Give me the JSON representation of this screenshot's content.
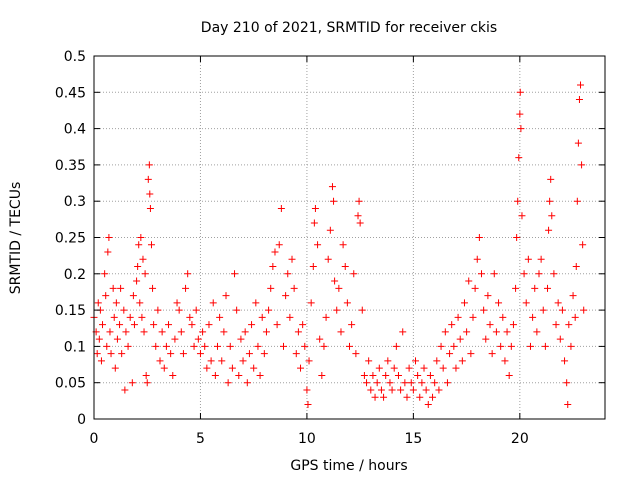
{
  "chart_data": {
    "type": "scatter",
    "title": "Day 210 of 2021, SRMTID for receiver ckis",
    "xlabel": "GPS time / hours",
    "ylabel": "SRMTID / TECUs",
    "xlim": [
      0,
      24
    ],
    "ylim": [
      0,
      0.5
    ],
    "xticks": [
      0,
      5,
      10,
      15,
      20
    ],
    "xtick_labels": [
      "0",
      "5",
      "10",
      "15",
      "20"
    ],
    "yticks": [
      0,
      0.05,
      0.1,
      0.15,
      0.2,
      0.25,
      0.3,
      0.35,
      0.4,
      0.45,
      0.5
    ],
    "ytick_labels": [
      "0",
      "0.05",
      "0.1",
      "0.15",
      "0.2",
      "0.25",
      "0.3",
      "0.35",
      "0.4",
      "0.45",
      "0.5"
    ],
    "grid": true,
    "marker": "+",
    "color": "#ff0000",
    "series": [
      {
        "name": "SRMTID",
        "points": [
          [
            0.0,
            0.14
          ],
          [
            0.1,
            0.12
          ],
          [
            0.15,
            0.09
          ],
          [
            0.2,
            0.16
          ],
          [
            0.25,
            0.11
          ],
          [
            0.3,
            0.15
          ],
          [
            0.35,
            0.08
          ],
          [
            0.4,
            0.13
          ],
          [
            0.5,
            0.2
          ],
          [
            0.55,
            0.17
          ],
          [
            0.6,
            0.1
          ],
          [
            0.65,
            0.23
          ],
          [
            0.7,
            0.25
          ],
          [
            0.75,
            0.12
          ],
          [
            0.8,
            0.09
          ],
          [
            0.9,
            0.18
          ],
          [
            0.95,
            0.14
          ],
          [
            1.0,
            0.07
          ],
          [
            1.05,
            0.16
          ],
          [
            1.1,
            0.11
          ],
          [
            1.2,
            0.13
          ],
          [
            1.25,
            0.18
          ],
          [
            1.3,
            0.09
          ],
          [
            1.4,
            0.15
          ],
          [
            1.45,
            0.04
          ],
          [
            1.5,
            0.12
          ],
          [
            1.6,
            0.1
          ],
          [
            1.7,
            0.14
          ],
          [
            1.8,
            0.05
          ],
          [
            1.85,
            0.17
          ],
          [
            1.9,
            0.13
          ],
          [
            2.0,
            0.19
          ],
          [
            2.05,
            0.21
          ],
          [
            2.1,
            0.24
          ],
          [
            2.15,
            0.16
          ],
          [
            2.2,
            0.25
          ],
          [
            2.25,
            0.14
          ],
          [
            2.3,
            0.22
          ],
          [
            2.35,
            0.12
          ],
          [
            2.4,
            0.2
          ],
          [
            2.45,
            0.06
          ],
          [
            2.5,
            0.05
          ],
          [
            2.55,
            0.33
          ],
          [
            2.6,
            0.35
          ],
          [
            2.62,
            0.31
          ],
          [
            2.65,
            0.29
          ],
          [
            2.7,
            0.24
          ],
          [
            2.75,
            0.18
          ],
          [
            2.8,
            0.13
          ],
          [
            2.9,
            0.1
          ],
          [
            3.0,
            0.15
          ],
          [
            3.1,
            0.08
          ],
          [
            3.2,
            0.12
          ],
          [
            3.3,
            0.07
          ],
          [
            3.4,
            0.1
          ],
          [
            3.5,
            0.13
          ],
          [
            3.6,
            0.09
          ],
          [
            3.7,
            0.06
          ],
          [
            3.8,
            0.11
          ],
          [
            3.9,
            0.16
          ],
          [
            4.0,
            0.15
          ],
          [
            4.1,
            0.12
          ],
          [
            4.2,
            0.09
          ],
          [
            4.3,
            0.18
          ],
          [
            4.4,
            0.2
          ],
          [
            4.5,
            0.14
          ],
          [
            4.6,
            0.13
          ],
          [
            4.7,
            0.1
          ],
          [
            4.8,
            0.15
          ],
          [
            4.9,
            0.11
          ],
          [
            5.0,
            0.09
          ],
          [
            5.1,
            0.12
          ],
          [
            5.2,
            0.1
          ],
          [
            5.3,
            0.07
          ],
          [
            5.4,
            0.13
          ],
          [
            5.5,
            0.08
          ],
          [
            5.6,
            0.16
          ],
          [
            5.7,
            0.06
          ],
          [
            5.8,
            0.1
          ],
          [
            5.9,
            0.14
          ],
          [
            6.0,
            0.08
          ],
          [
            6.1,
            0.12
          ],
          [
            6.2,
            0.17
          ],
          [
            6.3,
            0.05
          ],
          [
            6.4,
            0.1
          ],
          [
            6.5,
            0.07
          ],
          [
            6.6,
            0.2
          ],
          [
            6.7,
            0.15
          ],
          [
            6.8,
            0.06
          ],
          [
            6.9,
            0.11
          ],
          [
            7.0,
            0.08
          ],
          [
            7.1,
            0.12
          ],
          [
            7.2,
            0.05
          ],
          [
            7.3,
            0.09
          ],
          [
            7.4,
            0.13
          ],
          [
            7.5,
            0.07
          ],
          [
            7.6,
            0.16
          ],
          [
            7.7,
            0.1
          ],
          [
            7.8,
            0.06
          ],
          [
            7.9,
            0.14
          ],
          [
            8.0,
            0.09
          ],
          [
            8.1,
            0.12
          ],
          [
            8.2,
            0.15
          ],
          [
            8.3,
            0.18
          ],
          [
            8.4,
            0.21
          ],
          [
            8.5,
            0.23
          ],
          [
            8.6,
            0.13
          ],
          [
            8.7,
            0.24
          ],
          [
            8.8,
            0.29
          ],
          [
            8.9,
            0.1
          ],
          [
            9.0,
            0.17
          ],
          [
            9.1,
            0.2
          ],
          [
            9.2,
            0.14
          ],
          [
            9.3,
            0.22
          ],
          [
            9.4,
            0.18
          ],
          [
            9.5,
            0.09
          ],
          [
            9.6,
            0.12
          ],
          [
            9.7,
            0.07
          ],
          [
            9.8,
            0.13
          ],
          [
            9.9,
            0.1
          ],
          [
            10.0,
            0.04
          ],
          [
            10.05,
            0.02
          ],
          [
            10.1,
            0.08
          ],
          [
            10.2,
            0.16
          ],
          [
            10.3,
            0.21
          ],
          [
            10.35,
            0.27
          ],
          [
            10.4,
            0.29
          ],
          [
            10.5,
            0.24
          ],
          [
            10.6,
            0.11
          ],
          [
            10.7,
            0.06
          ],
          [
            10.8,
            0.1
          ],
          [
            10.9,
            0.14
          ],
          [
            11.0,
            0.22
          ],
          [
            11.1,
            0.26
          ],
          [
            11.2,
            0.32
          ],
          [
            11.25,
            0.3
          ],
          [
            11.3,
            0.19
          ],
          [
            11.4,
            0.15
          ],
          [
            11.5,
            0.18
          ],
          [
            11.6,
            0.12
          ],
          [
            11.7,
            0.24
          ],
          [
            11.8,
            0.21
          ],
          [
            11.9,
            0.16
          ],
          [
            12.0,
            0.1
          ],
          [
            12.1,
            0.13
          ],
          [
            12.2,
            0.2
          ],
          [
            12.3,
            0.09
          ],
          [
            12.4,
            0.28
          ],
          [
            12.45,
            0.3
          ],
          [
            12.5,
            0.27
          ],
          [
            12.6,
            0.15
          ],
          [
            12.7,
            0.06
          ],
          [
            12.8,
            0.05
          ],
          [
            12.9,
            0.08
          ],
          [
            13.0,
            0.04
          ],
          [
            13.1,
            0.06
          ],
          [
            13.2,
            0.03
          ],
          [
            13.3,
            0.05
          ],
          [
            13.4,
            0.07
          ],
          [
            13.5,
            0.04
          ],
          [
            13.6,
            0.03
          ],
          [
            13.7,
            0.06
          ],
          [
            13.8,
            0.08
          ],
          [
            13.9,
            0.05
          ],
          [
            14.0,
            0.04
          ],
          [
            14.1,
            0.07
          ],
          [
            14.2,
            0.1
          ],
          [
            14.3,
            0.06
          ],
          [
            14.4,
            0.04
          ],
          [
            14.5,
            0.12
          ],
          [
            14.6,
            0.05
          ],
          [
            14.7,
            0.03
          ],
          [
            14.8,
            0.07
          ],
          [
            14.9,
            0.05
          ],
          [
            15.0,
            0.04
          ],
          [
            15.1,
            0.08
          ],
          [
            15.2,
            0.06
          ],
          [
            15.3,
            0.03
          ],
          [
            15.4,
            0.05
          ],
          [
            15.5,
            0.07
          ],
          [
            15.6,
            0.04
          ],
          [
            15.7,
            0.02
          ],
          [
            15.8,
            0.06
          ],
          [
            15.9,
            0.03
          ],
          [
            16.0,
            0.05
          ],
          [
            16.1,
            0.08
          ],
          [
            16.2,
            0.04
          ],
          [
            16.3,
            0.1
          ],
          [
            16.4,
            0.07
          ],
          [
            16.5,
            0.12
          ],
          [
            16.6,
            0.05
          ],
          [
            16.7,
            0.09
          ],
          [
            16.8,
            0.13
          ],
          [
            16.9,
            0.1
          ],
          [
            17.0,
            0.07
          ],
          [
            17.1,
            0.14
          ],
          [
            17.2,
            0.11
          ],
          [
            17.3,
            0.08
          ],
          [
            17.4,
            0.16
          ],
          [
            17.5,
            0.12
          ],
          [
            17.6,
            0.19
          ],
          [
            17.7,
            0.09
          ],
          [
            17.8,
            0.14
          ],
          [
            17.9,
            0.18
          ],
          [
            18.0,
            0.22
          ],
          [
            18.1,
            0.25
          ],
          [
            18.2,
            0.2
          ],
          [
            18.3,
            0.15
          ],
          [
            18.4,
            0.11
          ],
          [
            18.5,
            0.17
          ],
          [
            18.6,
            0.13
          ],
          [
            18.7,
            0.09
          ],
          [
            18.8,
            0.2
          ],
          [
            18.9,
            0.12
          ],
          [
            19.0,
            0.16
          ],
          [
            19.1,
            0.1
          ],
          [
            19.2,
            0.14
          ],
          [
            19.3,
            0.08
          ],
          [
            19.4,
            0.12
          ],
          [
            19.5,
            0.06
          ],
          [
            19.6,
            0.1
          ],
          [
            19.7,
            0.13
          ],
          [
            19.8,
            0.18
          ],
          [
            19.85,
            0.25
          ],
          [
            19.9,
            0.3
          ],
          [
            19.95,
            0.36
          ],
          [
            20.0,
            0.42
          ],
          [
            20.02,
            0.45
          ],
          [
            20.05,
            0.4
          ],
          [
            20.1,
            0.28
          ],
          [
            20.2,
            0.2
          ],
          [
            20.3,
            0.16
          ],
          [
            20.4,
            0.22
          ],
          [
            20.5,
            0.1
          ],
          [
            20.6,
            0.14
          ],
          [
            20.7,
            0.18
          ],
          [
            20.8,
            0.12
          ],
          [
            20.9,
            0.2
          ],
          [
            21.0,
            0.22
          ],
          [
            21.1,
            0.15
          ],
          [
            21.2,
            0.1
          ],
          [
            21.3,
            0.18
          ],
          [
            21.35,
            0.26
          ],
          [
            21.4,
            0.3
          ],
          [
            21.45,
            0.33
          ],
          [
            21.5,
            0.28
          ],
          [
            21.6,
            0.2
          ],
          [
            21.7,
            0.13
          ],
          [
            21.8,
            0.16
          ],
          [
            21.9,
            0.11
          ],
          [
            22.0,
            0.15
          ],
          [
            22.1,
            0.08
          ],
          [
            22.2,
            0.05
          ],
          [
            22.25,
            0.02
          ],
          [
            22.3,
            0.13
          ],
          [
            22.4,
            0.1
          ],
          [
            22.5,
            0.17
          ],
          [
            22.6,
            0.14
          ],
          [
            22.65,
            0.21
          ],
          [
            22.7,
            0.3
          ],
          [
            22.75,
            0.38
          ],
          [
            22.8,
            0.44
          ],
          [
            22.85,
            0.46
          ],
          [
            22.9,
            0.35
          ],
          [
            22.95,
            0.24
          ],
          [
            23.0,
            0.15
          ]
        ]
      }
    ]
  }
}
